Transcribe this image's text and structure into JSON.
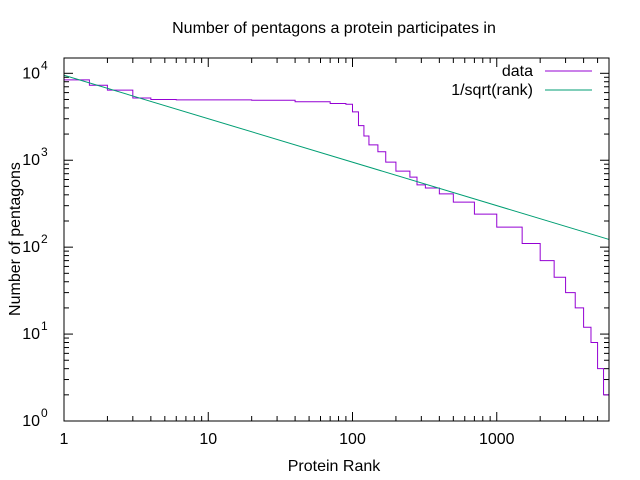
{
  "chart_data": {
    "type": "line",
    "title": "Number of pentagons a protein participates in",
    "xlabel": "Protein Rank",
    "ylabel": "Number of pentagons",
    "x_scale": "log",
    "y_scale": "log",
    "xlim": [
      1,
      6000
    ],
    "ylim": [
      1,
      15000
    ],
    "x_ticks": [
      {
        "value": 1,
        "label": "1"
      },
      {
        "value": 10,
        "label": "10"
      },
      {
        "value": 100,
        "label": "100"
      },
      {
        "value": 1000,
        "label": "1000"
      }
    ],
    "y_ticks": [
      {
        "value": 1,
        "base": "10",
        "exp": "0"
      },
      {
        "value": 10,
        "base": "10",
        "exp": "1"
      },
      {
        "value": 100,
        "base": "10",
        "exp": "2"
      },
      {
        "value": 1000,
        "base": "10",
        "exp": "3"
      },
      {
        "value": 10000,
        "base": "10",
        "exp": "4"
      }
    ],
    "grid": false,
    "legend_position": "top-right",
    "series": [
      {
        "name": "data",
        "color": "#9400d3",
        "step": true,
        "points": [
          [
            1,
            8400
          ],
          [
            1.5,
            7300
          ],
          [
            2,
            6400
          ],
          [
            3,
            5200
          ],
          [
            4,
            5000
          ],
          [
            6,
            4950
          ],
          [
            10,
            4950
          ],
          [
            20,
            4900
          ],
          [
            40,
            4700
          ],
          [
            70,
            4500
          ],
          [
            90,
            4400
          ],
          [
            100,
            3600
          ],
          [
            110,
            2500
          ],
          [
            120,
            1900
          ],
          [
            130,
            1500
          ],
          [
            150,
            1250
          ],
          [
            170,
            950
          ],
          [
            200,
            750
          ],
          [
            250,
            640
          ],
          [
            280,
            520
          ],
          [
            320,
            480
          ],
          [
            400,
            410
          ],
          [
            500,
            330
          ],
          [
            700,
            240
          ],
          [
            1000,
            170
          ],
          [
            1500,
            110
          ],
          [
            2000,
            70
          ],
          [
            2500,
            45
          ],
          [
            3000,
            30
          ],
          [
            3500,
            20
          ],
          [
            4000,
            12
          ],
          [
            4500,
            8
          ],
          [
            5000,
            4
          ],
          [
            5500,
            2
          ],
          [
            6000,
            2
          ]
        ]
      },
      {
        "name": "1/sqrt(rank)",
        "color": "#009e73",
        "coefficient": 9500,
        "x_range": [
          1,
          6000
        ]
      }
    ]
  }
}
